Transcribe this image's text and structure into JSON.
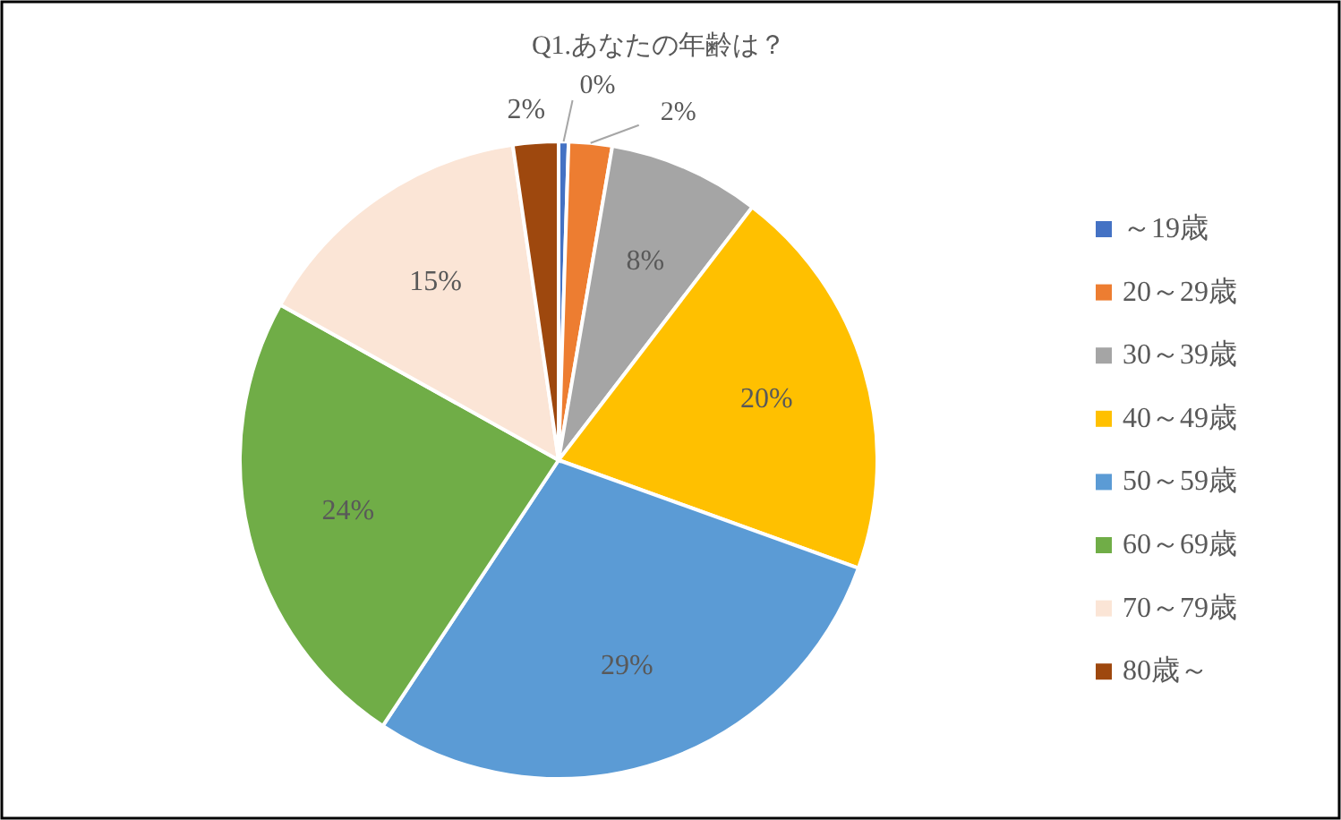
{
  "chart_data": {
    "type": "pie",
    "title": "Q1.あなたの年齢は？",
    "categories": [
      "～19歳",
      "20～29歳",
      "30～39歳",
      "40～49歳",
      "50～59歳",
      "60～69歳",
      "70～79歳",
      "80歳～"
    ],
    "values": [
      0.5,
      2.2,
      7.7,
      20.1,
      28.8,
      23.8,
      14.6,
      2.3
    ],
    "value_labels": [
      "0%",
      "2%",
      "8%",
      "20%",
      "29%",
      "24%",
      "15%",
      "2%"
    ],
    "colors": [
      "#4472c4",
      "#ed7d31",
      "#a5a5a5",
      "#ffc000",
      "#5b9bd5",
      "#70ad47",
      "#fbe5d6",
      "#9e480e"
    ],
    "legend": "right"
  }
}
